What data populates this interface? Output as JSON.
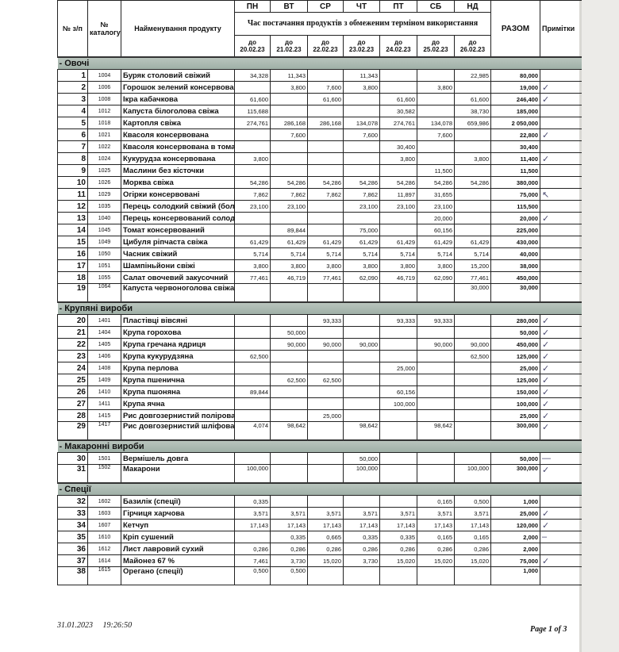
{
  "header": {
    "col_no": "№ з/п",
    "col_catalog": "№ каталогу",
    "col_name": "Найменування продукту",
    "days": [
      "ПН",
      "ВТ",
      "СР",
      "ЧТ",
      "ПТ",
      "СБ",
      "НД"
    ],
    "delivery_caption": "Час постачання продуктів з обмеженим терміном використання",
    "dates": [
      "до 20.02.23",
      "до 21.02.23",
      "до 22.02.23",
      "до 23.02.23",
      "до 24.02.23",
      "до 25.02.23",
      "до 26.02.23"
    ],
    "col_total": "РАЗОМ",
    "col_notes": "Примітки"
  },
  "sections": [
    {
      "title": "-   Овочі",
      "rows": [
        [
          "1",
          "1004",
          "Буряк столовий свіжий",
          [
            "34,328",
            "11,343",
            "",
            "11,343",
            "",
            "",
            "22,985"
          ],
          "80,000",
          ""
        ],
        [
          "2",
          "1006",
          "Горошок зелений консервований",
          [
            "",
            "3,800",
            "7,600",
            "3,800",
            "",
            "3,800",
            ""
          ],
          "19,000",
          "✓"
        ],
        [
          "3",
          "1008",
          "Ікра кабачкова",
          [
            "61,600",
            "",
            "61,600",
            "",
            "61,600",
            "",
            "61,600"
          ],
          "246,400",
          "✓"
        ],
        [
          "4",
          "1012",
          "Капуста білоголова свіжа",
          [
            "115,688",
            "",
            "",
            "",
            "30,582",
            "",
            "38,730"
          ],
          "185,000",
          ""
        ],
        [
          "5",
          "1018",
          "Картопля свіжа",
          [
            "274,761",
            "286,168",
            "286,168",
            "134,078",
            "274,761",
            "134,078",
            "659,986"
          ],
          "2 050,000",
          ""
        ],
        [
          "6",
          "1021",
          "Квасоля консервована",
          [
            "",
            "7,600",
            "",
            "7,600",
            "",
            "7,600",
            ""
          ],
          "22,800",
          "✓"
        ],
        [
          "7",
          "1022",
          "Квасоля консервована в томаті",
          [
            "",
            "",
            "",
            "",
            "30,400",
            "",
            ""
          ],
          "30,400",
          ""
        ],
        [
          "8",
          "1024",
          "Кукурудза консервована",
          [
            "3,800",
            "",
            "",
            "",
            "3,800",
            "",
            "3,800"
          ],
          "11,400",
          "✓"
        ],
        [
          "9",
          "1025",
          "Маслини без кісточки",
          [
            "",
            "",
            "",
            "",
            "",
            "11,500",
            ""
          ],
          "11,500",
          ""
        ],
        [
          "10",
          "1026",
          "Морква свіжа",
          [
            "54,286",
            "54,286",
            "54,286",
            "54,286",
            "54,286",
            "54,286",
            "54,286"
          ],
          "380,000",
          ""
        ],
        [
          "11",
          "1029",
          "Огірки консервовані",
          [
            "7,862",
            "7,862",
            "7,862",
            "7,862",
            "11,897",
            "31,655",
            ""
          ],
          "75,000",
          "↖"
        ],
        [
          "12",
          "1035",
          "Перець солодкий свіжий (болгарський)",
          [
            "23,100",
            "23,100",
            "",
            "23,100",
            "23,100",
            "23,100",
            ""
          ],
          "115,500",
          ""
        ],
        [
          "13",
          "1040",
          "Перець консервований солодкий",
          [
            "",
            "",
            "",
            "",
            "",
            "20,000",
            ""
          ],
          "20,000",
          "✓"
        ],
        [
          "14",
          "1045",
          "Томат консервований",
          [
            "",
            "89,844",
            "",
            "75,000",
            "",
            "60,156",
            ""
          ],
          "225,000",
          ""
        ],
        [
          "15",
          "1049",
          "Цибуля ріпчаста свіжа",
          [
            "61,429",
            "61,429",
            "61,429",
            "61,429",
            "61,429",
            "61,429",
            "61,429"
          ],
          "430,000",
          ""
        ],
        [
          "16",
          "1050",
          "Часник свіжий",
          [
            "5,714",
            "5,714",
            "5,714",
            "5,714",
            "5,714",
            "5,714",
            "5,714"
          ],
          "40,000",
          ""
        ],
        [
          "17",
          "1051",
          "Шампіньйони свіжі",
          [
            "3,800",
            "3,800",
            "3,800",
            "3,800",
            "3,800",
            "3,800",
            "15,200"
          ],
          "38,000",
          ""
        ],
        [
          "18",
          "1055",
          "Салат овочевий закусочний",
          [
            "77,461",
            "46,719",
            "77,461",
            "62,090",
            "46,719",
            "62,090",
            "77,461"
          ],
          "450,000",
          ""
        ],
        [
          "19",
          "1064",
          "Капуста червоноголова свіжа",
          [
            "",
            "",
            "",
            "",
            "",
            "",
            "30,000"
          ],
          "30,000",
          ""
        ]
      ]
    },
    {
      "title": "-   Крупяні вироби",
      "rows": [
        [
          "20",
          "1401",
          "Пластівці вівсяні",
          [
            "",
            "",
            "93,333",
            "",
            "93,333",
            "93,333",
            ""
          ],
          "280,000",
          "✓"
        ],
        [
          "21",
          "1404",
          "Крупа горохова",
          [
            "",
            "50,000",
            "",
            "",
            "",
            "",
            ""
          ],
          "50,000",
          "✓"
        ],
        [
          "22",
          "1405",
          "Крупа гречана ядриця",
          [
            "",
            "90,000",
            "90,000",
            "90,000",
            "",
            "90,000",
            "90,000"
          ],
          "450,000",
          "✓"
        ],
        [
          "23",
          "1406",
          "Крупа кукурудзяна",
          [
            "62,500",
            "",
            "",
            "",
            "",
            "",
            "62,500"
          ],
          "125,000",
          "✓"
        ],
        [
          "24",
          "1408",
          "Крупа перлова",
          [
            "",
            "",
            "",
            "",
            "25,000",
            "",
            ""
          ],
          "25,000",
          "✓"
        ],
        [
          "25",
          "1409",
          "Крупа пшенична",
          [
            "",
            "62,500",
            "62,500",
            "",
            "",
            "",
            ""
          ],
          "125,000",
          "✓"
        ],
        [
          "26",
          "1410",
          "Крупа пшоняна",
          [
            "89,844",
            "",
            "",
            "",
            "60,156",
            "",
            ""
          ],
          "150,000",
          "✓"
        ],
        [
          "27",
          "1411",
          "Крупа ячна",
          [
            "",
            "",
            "",
            "",
            "100,000",
            "",
            ""
          ],
          "100,000",
          "✓"
        ],
        [
          "28",
          "1415",
          "Рис довгозернистий полірований",
          [
            "",
            "",
            "25,000",
            "",
            "",
            "",
            ""
          ],
          "25,000",
          "✓"
        ],
        [
          "29",
          "1417",
          "Рис довгозернистий шліфований",
          [
            "4,074",
            "98,642",
            "",
            "98,642",
            "",
            "98,642",
            ""
          ],
          "300,000",
          "✓"
        ]
      ]
    },
    {
      "title": "-   Макаронні вироби",
      "rows": [
        [
          "30",
          "1501",
          "Вермішель довга",
          [
            "",
            "",
            "",
            "50,000",
            "",
            "",
            ""
          ],
          "50,000",
          "—"
        ],
        [
          "31",
          "1502",
          "Макарони",
          [
            "100,000",
            "",
            "",
            "100,000",
            "",
            "",
            "100,000"
          ],
          "300,000",
          "✓"
        ]
      ]
    },
    {
      "title": "-   Спеції",
      "rows": [
        [
          "32",
          "1602",
          "Базилік (спеції)",
          [
            "0,335",
            "",
            "",
            "",
            "",
            "0,165",
            "0,500"
          ],
          "1,000",
          ""
        ],
        [
          "33",
          "1603",
          "Гірчиця харчова",
          [
            "3,571",
            "3,571",
            "3,571",
            "3,571",
            "3,571",
            "3,571",
            "3,571"
          ],
          "25,000",
          "✓"
        ],
        [
          "34",
          "1607",
          "Кетчуп",
          [
            "17,143",
            "17,143",
            "17,143",
            "17,143",
            "17,143",
            "17,143",
            "17,143"
          ],
          "120,000",
          "✓"
        ],
        [
          "35",
          "1610",
          "Кріп сушений",
          [
            "",
            "0,335",
            "0,665",
            "0,335",
            "0,335",
            "0,165",
            "0,165"
          ],
          "2,000",
          "–"
        ],
        [
          "36",
          "1612",
          "Лист лавровий сухий",
          [
            "0,286",
            "0,286",
            "0,286",
            "0,286",
            "0,286",
            "0,286",
            "0,286"
          ],
          "2,000",
          ""
        ],
        [
          "37",
          "1614",
          "Майонез 67 %",
          [
            "7,461",
            "3,730",
            "15,020",
            "3,730",
            "15,020",
            "15,020",
            "15,020"
          ],
          "75,000",
          "✓"
        ],
        [
          "38",
          "1615",
          "Орегано (спеції)",
          [
            "0,500",
            "0,500",
            "",
            "",
            "",
            "",
            ""
          ],
          "1,000",
          ""
        ]
      ]
    }
  ],
  "footer": {
    "datetime": "31.01.2023     19:26:50",
    "page": "Page 1 of 3"
  }
}
